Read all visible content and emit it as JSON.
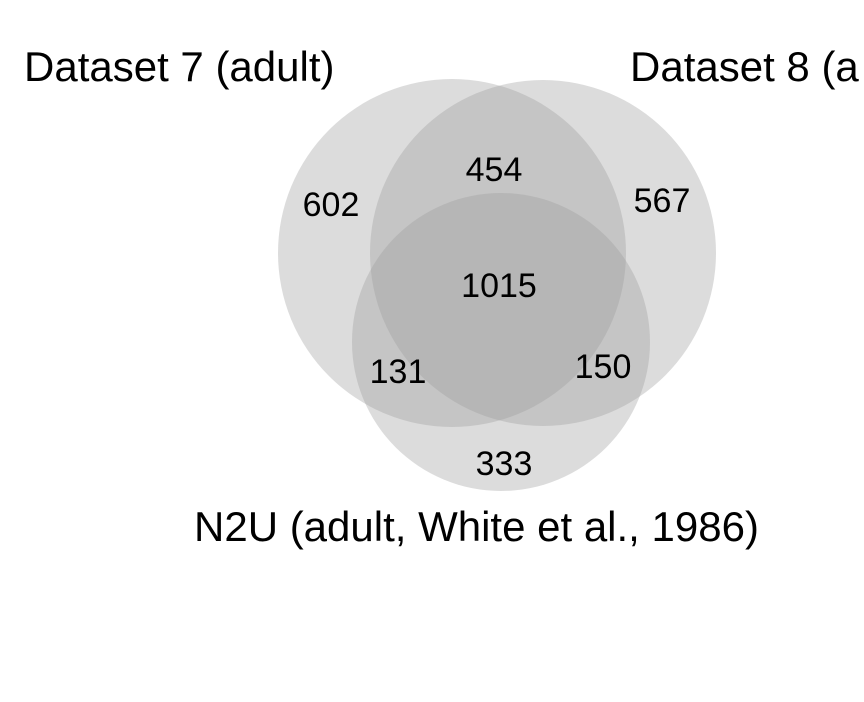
{
  "diagram": {
    "type": "venn-3",
    "circle_color": "#9a9a9a",
    "circle_opacity": 0.35,
    "sets": {
      "a": {
        "label": "Dataset 7 (adult)"
      },
      "b": {
        "label": "Dataset 8 (a"
      },
      "c": {
        "label": "N2U (adult, White et al., 1986)"
      }
    },
    "regions": {
      "a_only": "602",
      "b_only": "567",
      "c_only": "333",
      "ab": "454",
      "ac": "131",
      "bc": "150",
      "abc": "1015"
    }
  }
}
